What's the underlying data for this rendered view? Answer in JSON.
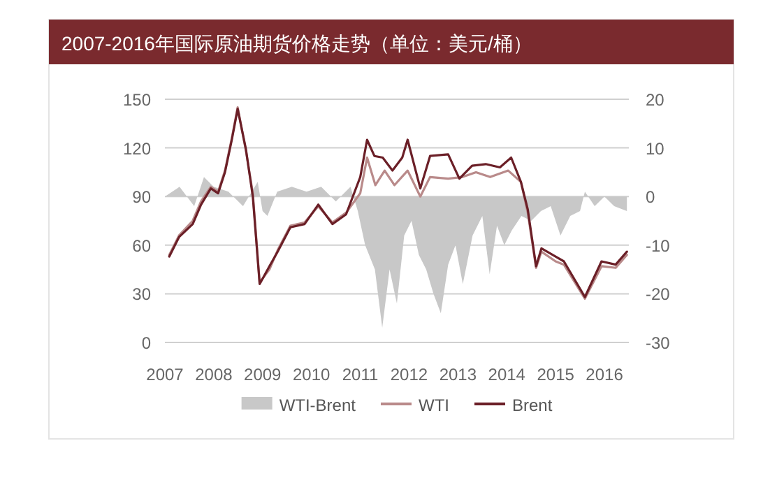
{
  "chart_data": {
    "type": "line",
    "title": "2007-2016年国际原油期货价格走势（单位：美元/桶）",
    "xlim": [
      2007,
      2016.5
    ],
    "xticks": [
      2007,
      2008,
      2009,
      2010,
      2011,
      2012,
      2013,
      2014,
      2015,
      2016
    ],
    "ylim": [
      0,
      150
    ],
    "yticks": [
      0,
      30,
      60,
      90,
      120,
      150
    ],
    "y2lim": [
      -30,
      20
    ],
    "y2ticks": [
      -30,
      -20,
      -10,
      0,
      10,
      20
    ],
    "grid": "y",
    "legend": "bottom",
    "series": [
      {
        "name": "WTI-Brent",
        "type": "area",
        "axis": "y2",
        "color": "#c8c8c8",
        "x": [
          2007.0,
          2007.3,
          2007.6,
          2007.8,
          2008.0,
          2008.3,
          2008.6,
          2008.9,
          2009.0,
          2009.1,
          2009.3,
          2009.6,
          2009.9,
          2010.2,
          2010.5,
          2010.8,
          2010.95,
          2011.1,
          2011.3,
          2011.45,
          2011.6,
          2011.75,
          2011.9,
          2012.05,
          2012.2,
          2012.35,
          2012.5,
          2012.65,
          2012.8,
          2012.95,
          2013.1,
          2013.3,
          2013.5,
          2013.65,
          2013.8,
          2013.95,
          2014.1,
          2014.3,
          2014.5,
          2014.7,
          2014.9,
          2015.1,
          2015.3,
          2015.5,
          2015.6,
          2015.8,
          2016.0,
          2016.2,
          2016.46
        ],
        "values": [
          0,
          2,
          -2,
          4,
          2,
          1,
          -2,
          3,
          -3,
          -4,
          1,
          2,
          1,
          2,
          -1,
          2,
          -3,
          -10,
          -15,
          -27,
          -15,
          -22,
          -8,
          -5,
          -12,
          -15,
          -20,
          -24,
          -14,
          -10,
          -18,
          -8,
          -4,
          -16,
          -6,
          -10,
          -7,
          -4,
          -5,
          -3,
          -2,
          -8,
          -4,
          -3,
          1,
          -2,
          0,
          -2,
          -3
        ]
      },
      {
        "name": "WTI",
        "type": "line",
        "color": "#b98a8a",
        "x": [
          2007.09,
          2007.29,
          2007.57,
          2007.74,
          2007.94,
          2008.09,
          2008.23,
          2008.37,
          2008.49,
          2008.66,
          2008.8,
          2008.94,
          2009.14,
          2009.31,
          2009.57,
          2009.86,
          2010.14,
          2010.43,
          2010.71,
          2011.0,
          2011.14,
          2011.31,
          2011.5,
          2011.7,
          2011.97,
          2012.23,
          2012.43,
          2012.8,
          2013.09,
          2013.37,
          2013.66,
          2014.03,
          2014.29,
          2014.43,
          2014.6,
          2014.71,
          2015.0,
          2015.17,
          2015.6,
          2015.94,
          2016.23,
          2016.46
        ],
        "values": [
          54,
          66,
          75,
          87,
          96,
          93,
          106,
          126,
          145,
          118,
          92,
          37,
          45,
          57,
          72,
          74,
          84,
          74,
          80,
          92,
          114,
          97,
          106,
          97,
          106,
          90,
          102,
          101,
          102,
          105,
          102,
          106,
          99,
          80,
          46,
          56,
          50,
          48,
          27,
          47,
          46,
          54
        ]
      },
      {
        "name": "Brent",
        "type": "line",
        "color": "#6b1f27",
        "x": [
          2007.09,
          2007.29,
          2007.57,
          2007.74,
          2007.94,
          2008.09,
          2008.23,
          2008.37,
          2008.49,
          2008.66,
          2008.8,
          2008.94,
          2009.14,
          2009.31,
          2009.57,
          2009.86,
          2010.14,
          2010.43,
          2010.71,
          2011.0,
          2011.14,
          2011.29,
          2011.46,
          2011.66,
          2011.86,
          2011.97,
          2012.23,
          2012.43,
          2012.8,
          2013.03,
          2013.29,
          2013.57,
          2013.86,
          2014.09,
          2014.29,
          2014.43,
          2014.6,
          2014.71,
          2015.0,
          2015.17,
          2015.6,
          2015.94,
          2016.23,
          2016.46
        ],
        "values": [
          53,
          65,
          73,
          85,
          95,
          92,
          105,
          125,
          144,
          119,
          90,
          36,
          47,
          56,
          71,
          73,
          85,
          73,
          79,
          102,
          125,
          115,
          114,
          106,
          114,
          125,
          95,
          115,
          116,
          101,
          109,
          110,
          108,
          114,
          99,
          82,
          47,
          58,
          53,
          50,
          28,
          50,
          48,
          56
        ]
      }
    ]
  }
}
